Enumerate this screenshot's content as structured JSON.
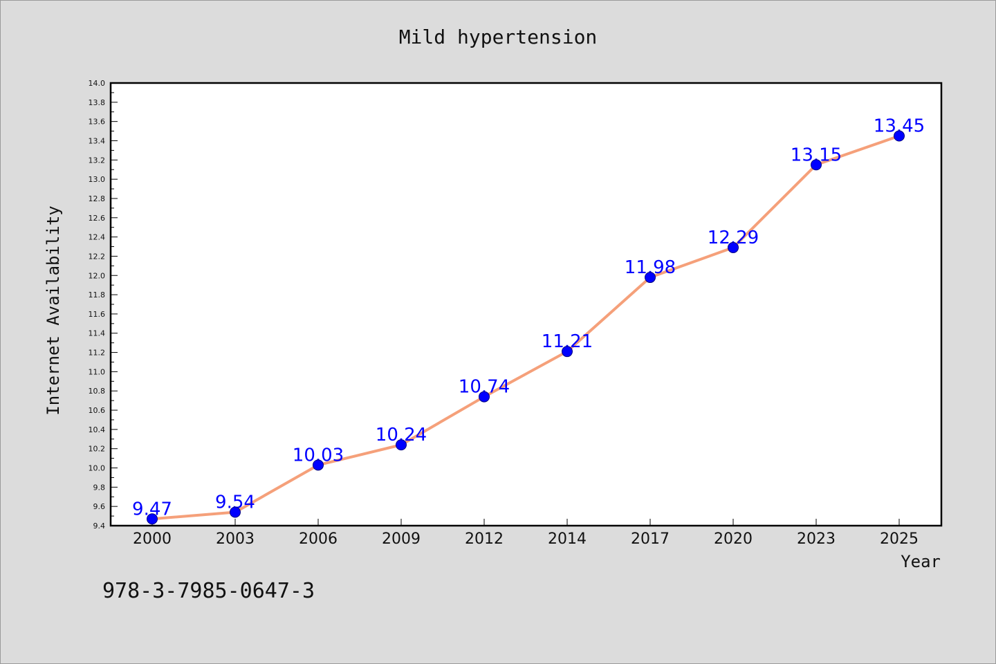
{
  "chart_data": {
    "type": "line",
    "title": "Mild hypertension",
    "xlabel": "Year",
    "ylabel": "Internet Availability",
    "categories": [
      "2000",
      "2003",
      "2006",
      "2009",
      "2012",
      "2014",
      "2017",
      "2020",
      "2023",
      "2025"
    ],
    "series": [
      {
        "values": [
          9.47,
          9.54,
          10.03,
          10.24,
          10.74,
          11.21,
          11.98,
          12.29,
          13.15,
          13.45
        ],
        "labels": [
          "9.47",
          "9.54",
          "10.03",
          "10.24",
          "10.74",
          "11.21",
          "11.98",
          "12.29",
          "13.15",
          "13.45"
        ]
      }
    ],
    "ylim": [
      9.4,
      14.0
    ],
    "yticks": [
      "9.4",
      "9.6",
      "9.8",
      "10.0",
      "10.2",
      "10.4",
      "10.6",
      "10.8",
      "11.0",
      "11.2",
      "11.4",
      "11.6",
      "11.8",
      "12.0",
      "12.2",
      "12.4",
      "12.6",
      "12.8",
      "13.0",
      "13.2",
      "13.4",
      "13.6",
      "13.8",
      "14.0"
    ],
    "grid": false,
    "line_color": "#f5a07a",
    "marker_color": "#0000ff",
    "label_color": "#0000ff"
  },
  "footer": {
    "isbn": "978-3-7985-0647-3"
  }
}
